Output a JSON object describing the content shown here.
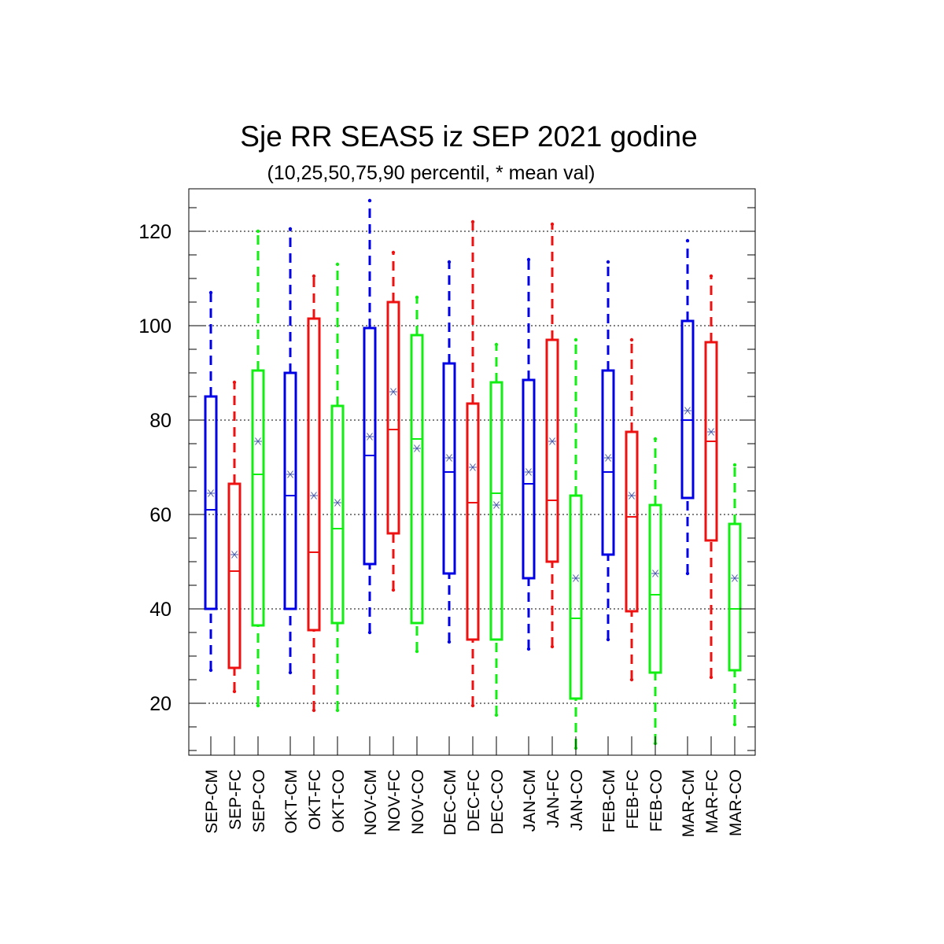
{
  "chart_data": {
    "type": "boxplot",
    "title": "Sje RR SEAS5 iz SEP 2021 godine",
    "subtitle": "(10,25,50,75,90 percentil, * mean val)",
    "ylim": [
      9,
      129
    ],
    "yticks": [
      20,
      40,
      60,
      80,
      100,
      120
    ],
    "grid": "horizontal dashed at major ticks",
    "stat_keys": [
      "p10",
      "p25",
      "p50",
      "p75",
      "p90",
      "mean"
    ],
    "colors": {
      "CM": "#0000e6",
      "FC": "#ee1111",
      "CO": "#11ee11",
      "mean_marker": "#4a5aa8"
    },
    "groups": [
      {
        "month": "SEP",
        "boxes": [
          {
            "label": "SEP-CM",
            "kind": "CM",
            "p10": 27.0,
            "p25": 40.0,
            "p50": 61.0,
            "p75": 85.0,
            "p90": 107.0,
            "mean": 64.5
          },
          {
            "label": "SEP-FC",
            "kind": "FC",
            "p10": 22.5,
            "p25": 27.5,
            "p50": 48.0,
            "p75": 66.5,
            "p90": 88.0,
            "mean": 51.5
          },
          {
            "label": "SEP-CO",
            "kind": "CO",
            "p10": 19.5,
            "p25": 36.5,
            "p50": 68.5,
            "p75": 90.5,
            "p90": 120.0,
            "mean": 75.5
          }
        ]
      },
      {
        "month": "OKT",
        "boxes": [
          {
            "label": "OKT-CM",
            "kind": "CM",
            "p10": 26.5,
            "p25": 40.0,
            "p50": 64.0,
            "p75": 90.0,
            "p90": 120.5,
            "mean": 68.5
          },
          {
            "label": "OKT-FC",
            "kind": "FC",
            "p10": 18.5,
            "p25": 35.5,
            "p50": 52.0,
            "p75": 101.5,
            "p90": 110.5,
            "mean": 64.0
          },
          {
            "label": "OKT-CO",
            "kind": "CO",
            "p10": 18.5,
            "p25": 37.0,
            "p50": 57.0,
            "p75": 83.0,
            "p90": 113.0,
            "mean": 62.5
          }
        ]
      },
      {
        "month": "NOV",
        "boxes": [
          {
            "label": "NOV-CM",
            "kind": "CM",
            "p10": 35.0,
            "p25": 49.5,
            "p50": 72.5,
            "p75": 99.5,
            "p90": 126.5,
            "mean": 76.5
          },
          {
            "label": "NOV-FC",
            "kind": "FC",
            "p10": 44.0,
            "p25": 56.0,
            "p50": 78.0,
            "p75": 105.0,
            "p90": 115.5,
            "mean": 86.0
          },
          {
            "label": "NOV-CO",
            "kind": "CO",
            "p10": 31.0,
            "p25": 37.0,
            "p50": 76.0,
            "p75": 98.0,
            "p90": 106.0,
            "mean": 74.0
          }
        ]
      },
      {
        "month": "DEC",
        "boxes": [
          {
            "label": "DEC-CM",
            "kind": "CM",
            "p10": 33.0,
            "p25": 47.5,
            "p50": 69.0,
            "p75": 92.0,
            "p90": 113.5,
            "mean": 72.0
          },
          {
            "label": "DEC-FC",
            "kind": "FC",
            "p10": 19.5,
            "p25": 33.5,
            "p50": 62.5,
            "p75": 83.5,
            "p90": 122.0,
            "mean": 70.0
          },
          {
            "label": "DEC-CO",
            "kind": "CO",
            "p10": 17.5,
            "p25": 33.5,
            "p50": 64.5,
            "p75": 88.0,
            "p90": 96.0,
            "mean": 62.0
          }
        ]
      },
      {
        "month": "JAN",
        "boxes": [
          {
            "label": "JAN-CM",
            "kind": "CM",
            "p10": 31.5,
            "p25": 46.5,
            "p50": 66.5,
            "p75": 88.5,
            "p90": 114.0,
            "mean": 69.0
          },
          {
            "label": "JAN-FC",
            "kind": "FC",
            "p10": 32.0,
            "p25": 50.0,
            "p50": 63.0,
            "p75": 97.0,
            "p90": 121.5,
            "mean": 75.5
          },
          {
            "label": "JAN-CO",
            "kind": "CO",
            "p10": 10.5,
            "p25": 21.0,
            "p50": 38.0,
            "p75": 64.0,
            "p90": 97.0,
            "mean": 46.5
          }
        ]
      },
      {
        "month": "FEB",
        "boxes": [
          {
            "label": "FEB-CM",
            "kind": "CM",
            "p10": 33.5,
            "p25": 51.5,
            "p50": 69.0,
            "p75": 90.5,
            "p90": 113.5,
            "mean": 72.0
          },
          {
            "label": "FEB-FC",
            "kind": "FC",
            "p10": 25.0,
            "p25": 39.5,
            "p50": 59.5,
            "p75": 77.5,
            "p90": 97.0,
            "mean": 64.0
          },
          {
            "label": "FEB-CO",
            "kind": "CO",
            "p10": 11.5,
            "p25": 26.5,
            "p50": 43.0,
            "p75": 62.0,
            "p90": 76.0,
            "mean": 47.5
          }
        ]
      },
      {
        "month": "MAR",
        "boxes": [
          {
            "label": "MAR-CM",
            "kind": "CM",
            "p10": 47.5,
            "p25": 63.5,
            "p50": 80.0,
            "p75": 101.0,
            "p90": 118.0,
            "mean": 82.0
          },
          {
            "label": "MAR-FC",
            "kind": "FC",
            "p10": 25.5,
            "p25": 54.5,
            "p50": 75.5,
            "p75": 96.5,
            "p90": 110.5,
            "mean": 77.5
          },
          {
            "label": "MAR-CO",
            "kind": "CO",
            "p10": 15.5,
            "p25": 27.0,
            "p50": 40.0,
            "p75": 58.0,
            "p90": 70.5,
            "mean": 46.5
          }
        ]
      }
    ]
  }
}
